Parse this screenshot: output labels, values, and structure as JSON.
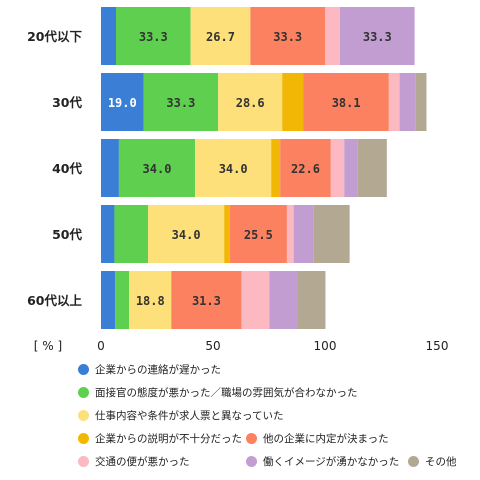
{
  "chart_data": {
    "type": "bar",
    "orientation": "horizontal",
    "stacked": true,
    "unit_label": "[ % ]",
    "x_ticks": [
      "0",
      "50",
      "100",
      "150"
    ],
    "xlim": [
      0,
      150
    ],
    "categories": [
      "20代以下",
      "30代",
      "40代",
      "50代",
      "60代以上"
    ],
    "series": [
      {
        "name": "企業からの連絡が遅かった",
        "color": "#3a7fd5",
        "values": [
          6.7,
          19.0,
          8.0,
          6.0,
          6.3
        ]
      },
      {
        "name": "面接官の態度が悪かった／職場の雰囲気が合わなかった",
        "color": "#5fcf4f",
        "values": [
          33.3,
          33.3,
          34.0,
          15.0,
          6.3
        ]
      },
      {
        "name": "仕事内容や条件が求人票と異なっていた",
        "color": "#fde07a",
        "values": [
          26.7,
          28.6,
          34.0,
          34.0,
          18.8
        ]
      },
      {
        "name": "企業からの説明が不十分だった",
        "color": "#f2b705",
        "values": [
          0,
          9.5,
          4.0,
          2.5,
          0
        ]
      },
      {
        "name": "他の企業に内定が決まった",
        "color": "#fb8160",
        "values": [
          33.3,
          38.1,
          22.6,
          25.5,
          31.3
        ]
      },
      {
        "name": "交通の便が悪かった",
        "color": "#fcb9c2",
        "values": [
          6.7,
          4.8,
          6.0,
          3.0,
          12.5
        ]
      },
      {
        "name": "働くイメージが湧かなかった",
        "color": "#c29dd1",
        "values": [
          33.3,
          7.0,
          6.0,
          9.0,
          12.5
        ]
      },
      {
        "name": "その他",
        "color": "#b3a993",
        "values": [
          0,
          5.0,
          13.0,
          16.0,
          12.5
        ]
      }
    ],
    "data_labels": [
      [
        "",
        "33.3",
        "26.7",
        "",
        "33.3",
        "",
        "33.3",
        ""
      ],
      [
        "19.0",
        "33.3",
        "28.6",
        "",
        "38.1",
        "",
        "",
        ""
      ],
      [
        "",
        "34.0",
        "34.0",
        "",
        "22.6",
        "",
        "",
        ""
      ],
      [
        "",
        "",
        "34.0",
        "",
        "25.5",
        "",
        "",
        ""
      ],
      [
        "",
        "",
        "18.8",
        "",
        "31.3",
        "",
        "",
        ""
      ]
    ]
  }
}
